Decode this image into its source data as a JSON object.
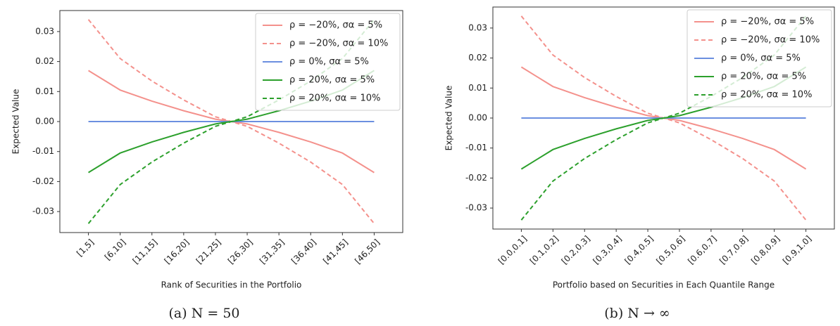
{
  "chart_data": [
    {
      "type": "line",
      "caption": "(a)  N = 50",
      "x_label": "Rank of Securities in the Portfolio",
      "y_label": "Expected Value",
      "categories": [
        "[1,5]",
        "[6,10]",
        "[11,15]",
        "[16,20]",
        "[21,25]",
        "[26,30]",
        "[31,35]",
        "[36,40]",
        "[41,45]",
        "[46,50]"
      ],
      "ylim": [
        -0.037,
        0.037
      ],
      "yticks": [
        {
          "value": -0.03,
          "label": "-0.03"
        },
        {
          "value": -0.02,
          "label": "-0.02"
        },
        {
          "value": -0.01,
          "label": "-0.01"
        },
        {
          "value": 0,
          "label": "0.00"
        },
        {
          "value": 0.01,
          "label": "0.01"
        },
        {
          "value": 0.02,
          "label": "0.02"
        },
        {
          "value": 0.03,
          "label": "0.03"
        }
      ],
      "legend": "upper right",
      "series": [
        {
          "name": "ρ = −20%, σα = 5%",
          "color": "#f4918c",
          "dash": false,
          "values": [
            0.017,
            0.0105,
            0.0068,
            0.0036,
            0.0008,
            -0.0008,
            -0.0036,
            -0.0068,
            -0.0105,
            -0.017
          ]
        },
        {
          "name": "ρ = −20%, σα = 10%",
          "color": "#f4918c",
          "dash": true,
          "values": [
            0.034,
            0.021,
            0.0135,
            0.0072,
            0.0016,
            -0.0016,
            -0.0072,
            -0.0135,
            -0.021,
            -0.034
          ]
        },
        {
          "name": "ρ = 0%, σα = 5%",
          "color": "#6b8fe0",
          "dash": false,
          "values": [
            0,
            0,
            0,
            0,
            0,
            0,
            0,
            0,
            0,
            0
          ]
        },
        {
          "name": "ρ = 20%, σα = 5%",
          "color": "#2ca02c",
          "dash": false,
          "values": [
            -0.017,
            -0.0105,
            -0.0068,
            -0.0036,
            -0.0008,
            0.0008,
            0.0036,
            0.0068,
            0.0105,
            0.017
          ]
        },
        {
          "name": "ρ = 20%, σα = 10%",
          "color": "#2ca02c",
          "dash": true,
          "values": [
            -0.034,
            -0.021,
            -0.0135,
            -0.0072,
            -0.0016,
            0.0016,
            0.0072,
            0.0135,
            0.021,
            0.034
          ]
        }
      ]
    },
    {
      "type": "line",
      "caption": "(b)  N → ∞",
      "x_label": "Portfolio based on Securities in Each Quantile Range",
      "y_label": "Expected Value",
      "categories": [
        "[0.0,0.1]",
        "[0.1,0.2]",
        "[0.2,0.3]",
        "[0.3,0.4]",
        "[0.4,0.5]",
        "[0.5,0.6]",
        "[0.6,0.7]",
        "[0.7,0.8]",
        "[0.8,0.9]",
        "[0.9,1.0]"
      ],
      "ylim": [
        -0.037,
        0.037
      ],
      "yticks": [
        {
          "value": -0.03,
          "label": "-0.03"
        },
        {
          "value": -0.02,
          "label": "-0.02"
        },
        {
          "value": -0.01,
          "label": "-0.01"
        },
        {
          "value": 0,
          "label": "0.00"
        },
        {
          "value": 0.01,
          "label": "0.01"
        },
        {
          "value": 0.02,
          "label": "0.02"
        },
        {
          "value": 0.03,
          "label": "0.03"
        }
      ],
      "legend": "upper right",
      "series": [
        {
          "name": "ρ = −20%, σα = 5%",
          "color": "#f4918c",
          "dash": false,
          "values": [
            0.017,
            0.0105,
            0.0068,
            0.0036,
            0.0008,
            -0.0008,
            -0.0036,
            -0.0068,
            -0.0105,
            -0.017
          ]
        },
        {
          "name": "ρ = −20%, σα = 10%",
          "color": "#f4918c",
          "dash": true,
          "values": [
            0.034,
            0.021,
            0.0135,
            0.0072,
            0.0016,
            -0.0016,
            -0.0072,
            -0.0135,
            -0.021,
            -0.034
          ]
        },
        {
          "name": "ρ = 0%, σα = 5%",
          "color": "#6b8fe0",
          "dash": false,
          "values": [
            0,
            0,
            0,
            0,
            0,
            0,
            0,
            0,
            0,
            0
          ]
        },
        {
          "name": "ρ = 20%, σα = 5%",
          "color": "#2ca02c",
          "dash": false,
          "values": [
            -0.017,
            -0.0105,
            -0.0068,
            -0.0036,
            -0.0008,
            0.0008,
            0.0036,
            0.0068,
            0.0105,
            0.017
          ]
        },
        {
          "name": "ρ = 20%, σα = 10%",
          "color": "#2ca02c",
          "dash": true,
          "values": [
            -0.034,
            -0.021,
            -0.0135,
            -0.0072,
            -0.0016,
            0.0016,
            0.0072,
            0.0135,
            0.021,
            0.034
          ]
        }
      ]
    }
  ]
}
